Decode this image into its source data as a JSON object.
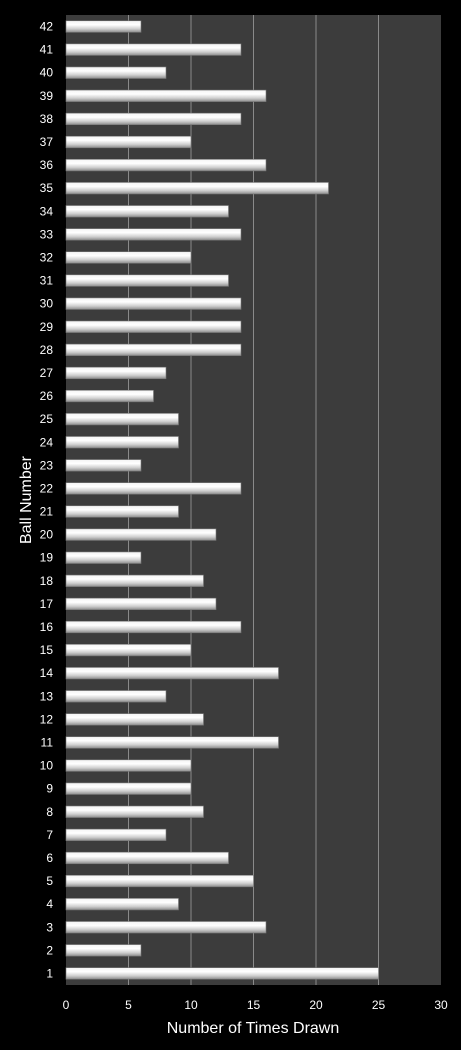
{
  "chart_data": {
    "type": "bar",
    "orientation": "horizontal",
    "xlabel": "Number of Times Drawn",
    "ylabel": "Ball Number",
    "xlim": [
      0,
      30
    ],
    "xticks": [
      "0",
      "5",
      "10",
      "15",
      "20",
      "25",
      "30"
    ],
    "grid": true,
    "categories": [
      "1",
      "2",
      "3",
      "4",
      "5",
      "6",
      "7",
      "8",
      "9",
      "10",
      "11",
      "12",
      "13",
      "14",
      "15",
      "16",
      "17",
      "18",
      "19",
      "20",
      "21",
      "22",
      "23",
      "24",
      "25",
      "26",
      "27",
      "28",
      "29",
      "30",
      "31",
      "32",
      "33",
      "34",
      "35",
      "36",
      "37",
      "38",
      "39",
      "40",
      "41",
      "42"
    ],
    "values": [
      25,
      6,
      16,
      9,
      15,
      13,
      8,
      11,
      10,
      10,
      17,
      11,
      8,
      17,
      10,
      14,
      12,
      11,
      6,
      12,
      9,
      14,
      6,
      9,
      9,
      7,
      8,
      14,
      14,
      14,
      13,
      10,
      14,
      13,
      21,
      16,
      10,
      14,
      16,
      8,
      14,
      6
    ],
    "colors": {
      "background": "#000000",
      "plot_area": "#3c3c3c",
      "gridline": "#8a8a8a",
      "bar_light": "#ffffff",
      "bar_mid": "#d4d4d4",
      "bar_dark": "#8c8c8c"
    }
  }
}
